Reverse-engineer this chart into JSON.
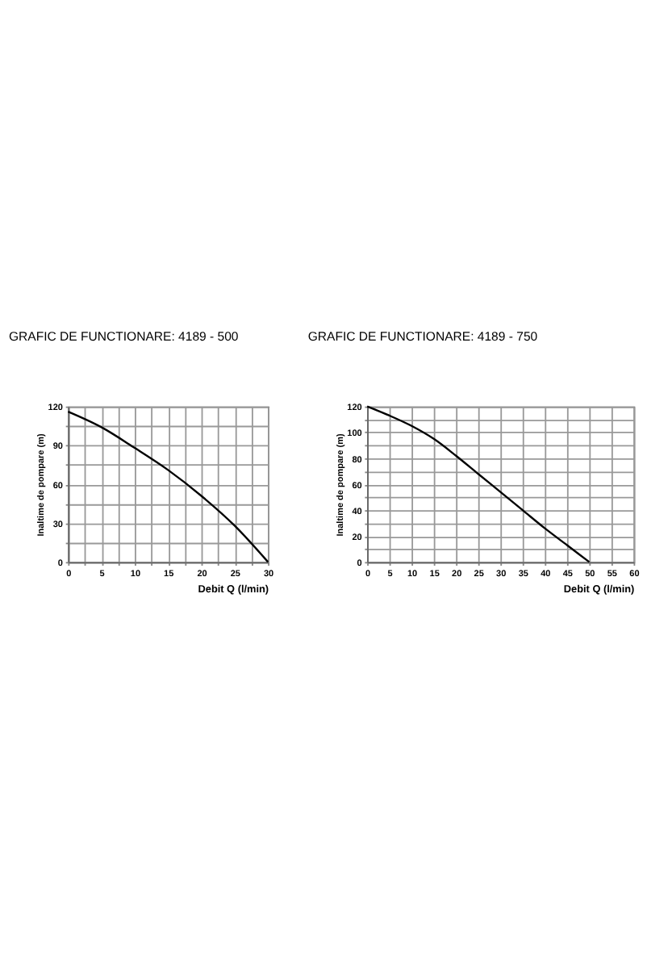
{
  "chart_data": [
    {
      "type": "line",
      "title": "GRAFIC DE FUNCTIONARE: 4189 - 500",
      "xlabel": "Debit  Q (l/min)",
      "ylabel": "Inaltime de pompare (m)",
      "x": [
        0,
        5,
        10,
        15,
        20,
        25,
        30
      ],
      "series": [
        {
          "color": "#000000",
          "values": [
            116,
            104,
            88,
            71,
            51,
            28,
            0
          ]
        }
      ],
      "xlim": [
        0,
        30
      ],
      "ylim": [
        0,
        120
      ],
      "xticks": [
        0,
        {
          "value": 2.5,
          "label": null
        },
        5,
        {
          "value": 7.5,
          "label": null
        },
        10,
        {
          "value": 12.5,
          "label": null
        },
        15,
        {
          "value": 17.5,
          "label": null
        },
        20,
        {
          "value": 22.5,
          "label": null
        },
        25,
        {
          "value": 27.5,
          "label": null
        },
        30
      ],
      "yticks": [
        0,
        {
          "value": 15,
          "label": null
        },
        30,
        {
          "value": 45,
          "label": null
        },
        60,
        {
          "value": 75,
          "label": null
        },
        90,
        {
          "value": 105,
          "label": null
        },
        120
      ],
      "grid": true,
      "marker": "none",
      "line_style": "solid"
    },
    {
      "type": "line",
      "title": "GRAFIC DE FUNCTIONARE: 4189 - 750",
      "xlabel": "Debit  Q (l/min)",
      "ylabel": "Inaltime de pompare (m)",
      "x": [
        0,
        5,
        10,
        15,
        20,
        25,
        30,
        35,
        40,
        45,
        50
      ],
      "series": [
        {
          "color": "#000000",
          "values": [
            120,
            113,
            105,
            95,
            82,
            68,
            54,
            40,
            26,
            13,
            0
          ]
        }
      ],
      "xlim": [
        0,
        60
      ],
      "ylim": [
        0,
        120
      ],
      "xticks": [
        0,
        5,
        10,
        15,
        20,
        25,
        30,
        35,
        40,
        45,
        50,
        55,
        60
      ],
      "yticks": [
        0,
        {
          "value": 10,
          "label": null
        },
        20,
        {
          "value": 30,
          "label": null
        },
        40,
        {
          "value": 50,
          "label": null
        },
        60,
        {
          "value": 70,
          "label": null
        },
        80,
        {
          "value": 90,
          "label": null
        },
        100,
        {
          "value": 110,
          "label": null
        },
        120
      ],
      "grid": true,
      "marker": "none",
      "line_style": "solid"
    }
  ]
}
